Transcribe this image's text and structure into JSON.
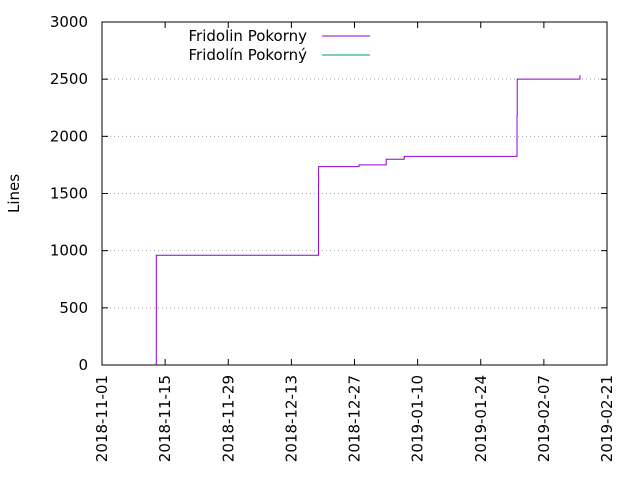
{
  "chart_data": {
    "type": "line",
    "title": "",
    "xlabel": "",
    "ylabel": "Lines",
    "x_type": "date",
    "xlim": [
      "2018-11-01",
      "2019-02-21"
    ],
    "ylim": [
      0,
      3000
    ],
    "x_ticks": [
      "2018-11-01",
      "2018-11-15",
      "2018-11-29",
      "2018-12-13",
      "2018-12-27",
      "2019-01-10",
      "2019-01-24",
      "2019-02-07",
      "2019-02-21"
    ],
    "y_ticks": [
      0,
      500,
      1000,
      1500,
      2000,
      2500,
      3000
    ],
    "grid": {
      "y": true,
      "x": false,
      "style": "dotted"
    },
    "legend": {
      "placement": "top-left"
    },
    "series": [
      {
        "name": "Fridolin Pokorny",
        "color": "#9400d3",
        "x": [
          "2018-11-13T00:00",
          "2018-11-13T01:00",
          "2018-12-19T00:00",
          "2018-12-19T01:00",
          "2018-12-28T00:00",
          "2019-01-03T00:00",
          "2019-01-03T01:00",
          "2019-01-07T00:00",
          "2019-01-07T01:00",
          "2019-02-01T00:00",
          "2019-02-01T01:00",
          "2019-02-01T02:00",
          "2019-02-15T00:00"
        ],
        "values": [
          0,
          960,
          1580,
          1735,
          1750,
          1760,
          1800,
          1810,
          1825,
          1825,
          2180,
          2500,
          2535
        ]
      },
      {
        "name": "Fridolín Pokorný",
        "color": "#009e73",
        "x": [],
        "values": []
      }
    ]
  }
}
